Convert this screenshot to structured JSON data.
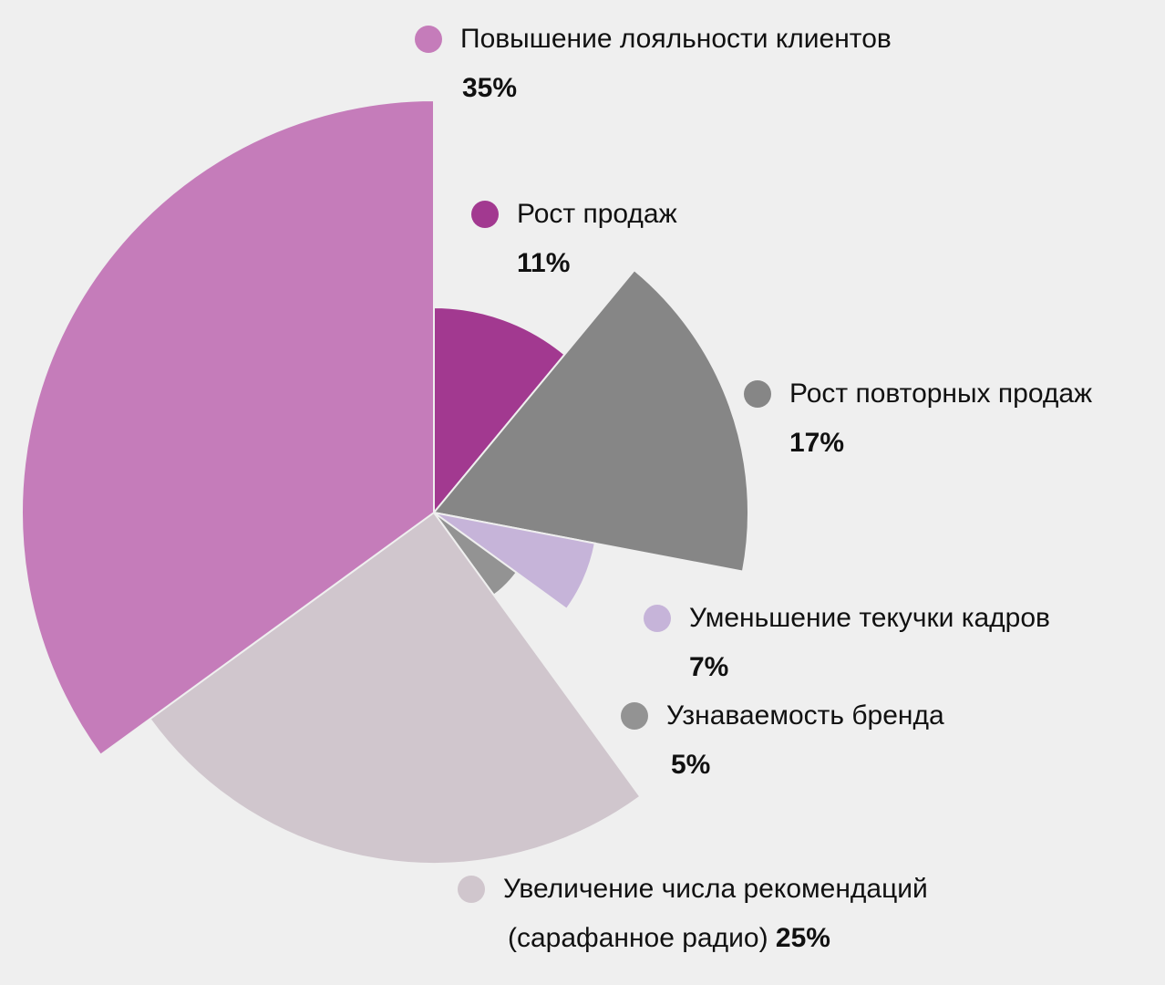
{
  "chart_data": {
    "type": "pie",
    "variant": "variable-radius",
    "slices": [
      {
        "label": "Рост продаж",
        "value": 11,
        "value_label": "11%",
        "color": "#a23990"
      },
      {
        "label": "Рост повторных продаж",
        "value": 17,
        "value_label": "17%",
        "color": "#868686"
      },
      {
        "label": "Уменьшение текучки кадров",
        "value": 7,
        "value_label": "7%",
        "color": "#c6b4d9"
      },
      {
        "label": "Узнаваемость бренда",
        "value": 5,
        "value_label": "5%",
        "color": "#939393"
      },
      {
        "label": "Увеличение числа рекомендаций",
        "label_line2": "(сарафанное радио)",
        "value": 25,
        "value_label": "25%",
        "color": "#d0c6cd"
      },
      {
        "label": "Повышение лояльности клиентов",
        "value": 35,
        "value_label": "35%",
        "color": "#c57cba"
      }
    ],
    "legend": "beside-slices"
  }
}
